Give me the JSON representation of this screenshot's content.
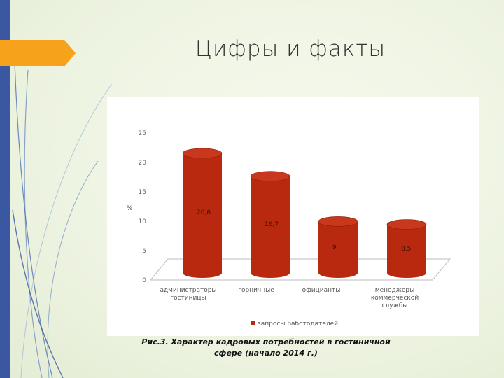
{
  "slide": {
    "title": "Цифры  и факты",
    "caption_line1": "Рис.3. Характер кадровых потребностей в гостиничной",
    "caption_line2": "сфере (начало 2014 г.)"
  },
  "colors": {
    "accent_bar": "#3b57a2",
    "arrow_tab": "#f7a21b",
    "bar_fill": "#b8290f",
    "bar_top": "#c9371c"
  },
  "chart_data": {
    "type": "bar",
    "style": "3d-cylinder",
    "categories": [
      [
        "администраторы",
        "гостиницы"
      ],
      [
        "горничные"
      ],
      [
        "официанты"
      ],
      [
        "менеджеры",
        "коммерческой",
        "службы"
      ]
    ],
    "series": [
      {
        "name": "запросы работодателей",
        "values": [
          20.6,
          16.7,
          9,
          8.5
        ]
      }
    ],
    "value_labels": [
      "20,6",
      "16,7",
      "9",
      "8,5"
    ],
    "yticks": [
      "0",
      "5",
      "10",
      "15",
      "20",
      "25"
    ],
    "ylabel": "%",
    "ylim": [
      0,
      25
    ],
    "grid": false,
    "legend_position": "bottom"
  }
}
